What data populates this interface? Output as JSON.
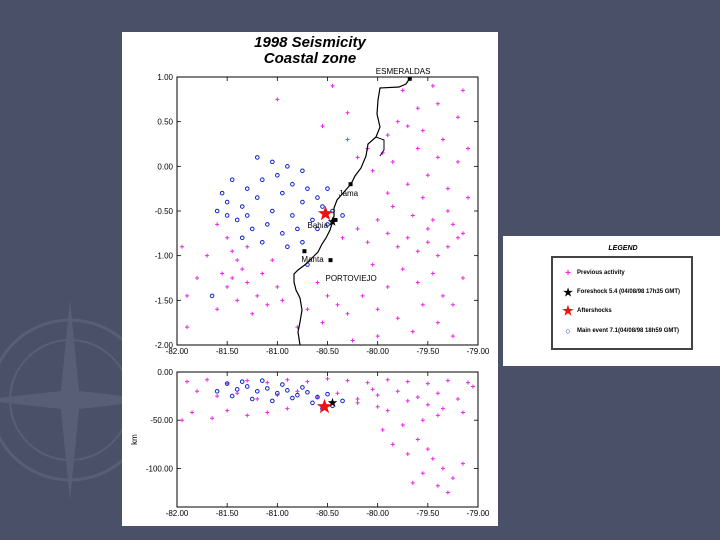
{
  "colors": {
    "slide_bg": "#4a5068",
    "previous": "#ee22ee",
    "foreshock": "#000000",
    "aftershock": "#ee1111",
    "main_event": "#1122cc"
  },
  "figure": {
    "title_line1": "1998 Seismicity",
    "title_line2": "Coastal zone"
  },
  "legend": {
    "title": "LEGEND",
    "items": [
      {
        "icon": "plus-icon",
        "label": "Previous activity"
      },
      {
        "icon": "black-star-icon",
        "label": "Foreshock  5.4 (04/08/98  17h35 GMT)"
      },
      {
        "icon": "red-star-icon",
        "label": "Aftershocks"
      },
      {
        "icon": "blue-circle-icon",
        "label": "Main event    7.1(04/08/98  18h59 GMT)"
      }
    ]
  },
  "chart_data": [
    {
      "type": "scatter",
      "panel": "map",
      "xlim": [
        -82.0,
        -79.0
      ],
      "ylim": [
        -2.0,
        1.0
      ],
      "xticks": [
        "-82.00",
        "-81.50",
        "-81.00",
        "-80.50",
        "-80.00",
        "-79.50",
        "-79.00"
      ],
      "yticks": [
        "1.00",
        "0.50",
        "0.00",
        "-0.50",
        "-1.00",
        "-1.50",
        "-2.00"
      ],
      "cities": [
        {
          "name": "ESMERALDAS",
          "x": -79.68,
          "y": 0.98
        },
        {
          "name": "Jama",
          "x": -80.27,
          "y": -0.2
        },
        {
          "name": "Bahia",
          "x": -80.42,
          "y": -0.6
        },
        {
          "name": "Manta",
          "x": -80.73,
          "y": -0.95
        },
        {
          "name": "PORTOVIEJO",
          "x": -80.47,
          "y": -1.05
        }
      ],
      "series": [
        {
          "role": "previous",
          "points": [
            [
              -81.6,
              -0.65
            ],
            [
              -81.5,
              -0.8
            ],
            [
              -81.45,
              -0.95
            ],
            [
              -81.4,
              -1.05
            ],
            [
              -81.35,
              -1.15
            ],
            [
              -81.55,
              -1.2
            ],
            [
              -81.3,
              -1.3
            ],
            [
              -81.5,
              -1.35
            ],
            [
              -81.2,
              -1.45
            ],
            [
              -81.4,
              -1.5
            ],
            [
              -81.1,
              -1.55
            ],
            [
              -81.6,
              -1.6
            ],
            [
              -81.25,
              -1.65
            ],
            [
              -81.7,
              -1.0
            ],
            [
              -81.8,
              -1.25
            ],
            [
              -81.9,
              -1.45
            ],
            [
              -81.15,
              -1.2
            ],
            [
              -81.0,
              -1.35
            ],
            [
              -80.95,
              -1.5
            ],
            [
              -80.7,
              -1.6
            ],
            [
              -80.6,
              -1.3
            ],
            [
              -80.5,
              -1.45
            ],
            [
              -80.4,
              -1.55
            ],
            [
              -80.3,
              -1.65
            ],
            [
              -80.8,
              -1.8
            ],
            [
              -80.55,
              -1.75
            ],
            [
              -81.3,
              -0.9
            ],
            [
              -81.45,
              -1.25
            ],
            [
              -81.05,
              -1.05
            ],
            [
              -80.35,
              -0.8
            ],
            [
              -80.2,
              -0.7
            ],
            [
              -80.1,
              -0.85
            ],
            [
              -80.0,
              -0.6
            ],
            [
              -79.9,
              -0.75
            ],
            [
              -79.8,
              -0.9
            ],
            [
              -79.7,
              -0.8
            ],
            [
              -79.6,
              -0.95
            ],
            [
              -79.5,
              -0.85
            ],
            [
              -79.4,
              -1.0
            ],
            [
              -79.3,
              -0.9
            ],
            [
              -79.2,
              -0.8
            ],
            [
              -79.5,
              -0.7
            ],
            [
              -79.65,
              -0.55
            ],
            [
              -79.85,
              -0.45
            ],
            [
              -79.3,
              -0.5
            ],
            [
              -79.25,
              -0.65
            ],
            [
              -79.45,
              -1.2
            ],
            [
              -79.6,
              -1.3
            ],
            [
              -79.75,
              -1.15
            ],
            [
              -79.9,
              -1.35
            ],
            [
              -80.05,
              -1.1
            ],
            [
              -80.15,
              -1.45
            ],
            [
              -79.55,
              -1.55
            ],
            [
              -79.35,
              -1.45
            ],
            [
              -79.15,
              -1.25
            ],
            [
              -79.8,
              -1.7
            ],
            [
              -79.65,
              -1.85
            ],
            [
              -79.4,
              -1.75
            ],
            [
              -79.25,
              -1.9
            ],
            [
              -80.0,
              -1.6
            ],
            [
              -80.0,
              -1.9
            ],
            [
              -80.25,
              -1.95
            ],
            [
              -79.6,
              0.2
            ],
            [
              -79.4,
              0.1
            ],
            [
              -79.2,
              0.05
            ],
            [
              -79.5,
              -0.1
            ],
            [
              -79.7,
              -0.2
            ],
            [
              -79.9,
              -0.3
            ],
            [
              -79.3,
              -0.25
            ],
            [
              -79.1,
              -0.35
            ],
            [
              -79.35,
              0.3
            ],
            [
              -79.55,
              0.4
            ],
            [
              -79.2,
              0.55
            ],
            [
              -79.4,
              0.7
            ],
            [
              -79.6,
              0.65
            ],
            [
              -79.8,
              0.5
            ],
            [
              -79.9,
              0.35
            ],
            [
              -80.1,
              0.2
            ],
            [
              -80.3,
              0.6
            ],
            [
              -80.45,
              0.9
            ],
            [
              -79.75,
              0.85
            ],
            [
              -79.45,
              0.9
            ],
            [
              -79.15,
              0.85
            ],
            [
              -79.7,
              0.45
            ],
            [
              -79.95,
              0.15
            ],
            [
              -80.2,
              0.1
            ],
            [
              -80.05,
              -0.05
            ],
            [
              -79.85,
              0.05
            ],
            [
              -80.3,
              0.3
            ],
            [
              -79.1,
              0.2
            ],
            [
              -81.9,
              -1.8
            ],
            [
              -81.95,
              -0.9
            ],
            [
              -81.0,
              0.75
            ],
            [
              -80.55,
              0.45
            ],
            [
              -79.55,
              -0.35
            ],
            [
              -79.25,
              -1.55
            ],
            [
              -79.45,
              -0.6
            ],
            [
              -79.15,
              -0.75
            ]
          ]
        },
        {
          "role": "main_event",
          "points": [
            [
              -81.5,
              -0.4
            ],
            [
              -81.35,
              -0.45
            ],
            [
              -81.2,
              -0.35
            ],
            [
              -81.05,
              -0.5
            ],
            [
              -80.95,
              -0.3
            ],
            [
              -80.85,
              -0.55
            ],
            [
              -80.75,
              -0.4
            ],
            [
              -80.65,
              -0.6
            ],
            [
              -80.55,
              -0.45
            ],
            [
              -80.45,
              -0.5
            ],
            [
              -81.4,
              -0.6
            ],
            [
              -81.25,
              -0.7
            ],
            [
              -81.1,
              -0.65
            ],
            [
              -80.95,
              -0.75
            ],
            [
              -80.8,
              -0.7
            ],
            [
              -80.6,
              -0.7
            ],
            [
              -81.3,
              -0.25
            ],
            [
              -81.15,
              -0.15
            ],
            [
              -81.0,
              -0.1
            ],
            [
              -80.85,
              -0.2
            ],
            [
              -80.7,
              -0.25
            ],
            [
              -81.45,
              -0.15
            ],
            [
              -81.55,
              -0.3
            ],
            [
              -81.6,
              -0.5
            ],
            [
              -81.35,
              -0.8
            ],
            [
              -81.15,
              -0.85
            ],
            [
              -80.9,
              -0.9
            ],
            [
              -80.75,
              -0.85
            ],
            [
              -81.05,
              0.05
            ],
            [
              -80.9,
              0.0
            ],
            [
              -80.75,
              -0.05
            ],
            [
              -81.2,
              0.1
            ],
            [
              -80.6,
              -0.35
            ],
            [
              -80.5,
              -0.25
            ],
            [
              -80.35,
              -0.55
            ],
            [
              -81.65,
              -1.45
            ],
            [
              -80.7,
              -1.1
            ],
            [
              -80.5,
              -0.65
            ],
            [
              -81.5,
              -0.55
            ],
            [
              -81.3,
              -0.55
            ]
          ]
        }
      ],
      "aftershock": {
        "x": -80.52,
        "y": -0.53
      },
      "foreshock": {
        "x": -80.45,
        "y": -0.62
      }
    },
    {
      "type": "scatter",
      "panel": "depth_section",
      "ylabel": "km",
      "xlim": [
        -82.0,
        -79.0
      ],
      "ylim": [
        -140,
        0
      ],
      "xticks": [
        "-82.00",
        "-81.50",
        "-81.00",
        "-80.50",
        "-80.00",
        "-79.50",
        "-79.00"
      ],
      "yticks": [
        "0.00",
        "-50.00",
        "-100.00"
      ],
      "series": [
        {
          "role": "previous",
          "points": [
            [
              -81.9,
              -10
            ],
            [
              -81.7,
              -8
            ],
            [
              -81.5,
              -12
            ],
            [
              -81.3,
              -9
            ],
            [
              -81.1,
              -11
            ],
            [
              -80.9,
              -8
            ],
            [
              -80.7,
              -10
            ],
            [
              -80.5,
              -7
            ],
            [
              -80.3,
              -9
            ],
            [
              -80.1,
              -11
            ],
            [
              -79.9,
              -8
            ],
            [
              -79.7,
              -10
            ],
            [
              -79.5,
              -12
            ],
            [
              -79.3,
              -9
            ],
            [
              -79.1,
              -11
            ],
            [
              -81.8,
              -20
            ],
            [
              -81.6,
              -25
            ],
            [
              -81.4,
              -22
            ],
            [
              -81.2,
              -28
            ],
            [
              -81.0,
              -24
            ],
            [
              -80.8,
              -20
            ],
            [
              -80.6,
              -26
            ],
            [
              -80.4,
              -22
            ],
            [
              -80.2,
              -28
            ],
            [
              -80.0,
              -24
            ],
            [
              -79.8,
              -20
            ],
            [
              -79.6,
              -26
            ],
            [
              -79.4,
              -22
            ],
            [
              -79.2,
              -28
            ],
            [
              -81.5,
              -40
            ],
            [
              -81.3,
              -45
            ],
            [
              -81.1,
              -42
            ],
            [
              -80.9,
              -38
            ],
            [
              -80.2,
              -32
            ],
            [
              -80.0,
              -36
            ],
            [
              -79.9,
              -40
            ],
            [
              -79.7,
              -30
            ],
            [
              -79.5,
              -34
            ],
            [
              -79.35,
              -38
            ],
            [
              -79.15,
              -42
            ],
            [
              -79.95,
              -60
            ],
            [
              -79.75,
              -55
            ],
            [
              -79.55,
              -50
            ],
            [
              -79.4,
              -45
            ],
            [
              -79.6,
              -70
            ],
            [
              -79.5,
              -80
            ],
            [
              -79.45,
              -90
            ],
            [
              -79.35,
              -100
            ],
            [
              -79.55,
              -105
            ],
            [
              -79.25,
              -110
            ],
            [
              -79.4,
              -118
            ],
            [
              -79.3,
              -125
            ],
            [
              -79.15,
              -95
            ],
            [
              -79.7,
              -85
            ],
            [
              -79.85,
              -75
            ],
            [
              -79.65,
              -115
            ],
            [
              -81.65,
              -48
            ],
            [
              -81.85,
              -42
            ],
            [
              -81.95,
              -50
            ],
            [
              -80.05,
              -18
            ],
            [
              -79.05,
              -15
            ]
          ]
        },
        {
          "role": "main_event",
          "points": [
            [
              -81.5,
              -12
            ],
            [
              -81.4,
              -18
            ],
            [
              -81.3,
              -15
            ],
            [
              -81.2,
              -20
            ],
            [
              -81.1,
              -17
            ],
            [
              -81.0,
              -22
            ],
            [
              -80.9,
              -19
            ],
            [
              -80.8,
              -24
            ],
            [
              -80.7,
              -21
            ],
            [
              -80.6,
              -26
            ],
            [
              -80.5,
              -23
            ],
            [
              -81.45,
              -25
            ],
            [
              -81.25,
              -28
            ],
            [
              -81.05,
              -30
            ],
            [
              -80.85,
              -27
            ],
            [
              -80.65,
              -32
            ],
            [
              -80.45,
              -35
            ],
            [
              -80.35,
              -30
            ],
            [
              -81.35,
              -10
            ],
            [
              -81.15,
              -9
            ],
            [
              -80.95,
              -13
            ],
            [
              -81.6,
              -20
            ],
            [
              -80.75,
              -16
            ],
            [
              -80.55,
              -38
            ]
          ]
        }
      ],
      "aftershock": {
        "x": -80.53,
        "y": -36
      },
      "foreshock": {
        "x": -80.45,
        "y": -32
      }
    }
  ]
}
